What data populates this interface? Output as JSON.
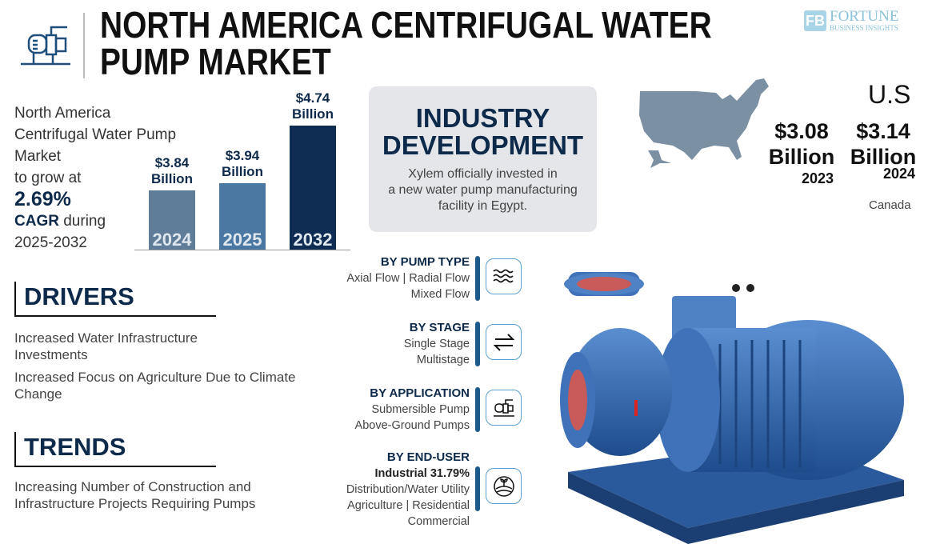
{
  "header": {
    "title_line1": "NORTH AMERICA CENTRIFUGAL WATER",
    "title_line2": "PUMP MARKET",
    "logo_text1": "FORTUNE",
    "logo_text2": "BUSINESS INSIGHTS",
    "logo_mark": "FB"
  },
  "intro": {
    "line1": "North America",
    "line2": "Centrifugal Water Pump",
    "line3": "Market",
    "line4": "to grow at",
    "cagr": "2.69%",
    "cagr_label": "CAGR",
    "during": "during",
    "period": "2025-2032"
  },
  "chart_data": {
    "type": "bar",
    "categories": [
      "2024",
      "2025",
      "2032"
    ],
    "values": [
      3.84,
      3.94,
      4.74
    ],
    "value_labels": [
      "$3.84",
      "$3.94",
      "$4.74"
    ],
    "unit": "Billion",
    "colors": [
      "#5f7d98",
      "#4a78a3",
      "#0f2d52"
    ]
  },
  "industry": {
    "title1": "INDUSTRY",
    "title2": "DEVELOPMENT",
    "text1": "Xylem officially invested in",
    "text2": "a new water pump manufacturing",
    "text3": "facility in Egypt."
  },
  "regions": {
    "us_label": "U.S",
    "v2023": "$3.08",
    "v2024": "$3.14",
    "unit": "Billion",
    "y2023": "2023",
    "y2024": "2024",
    "canada": "Canada",
    "map_color": "#7b91a3"
  },
  "drivers": {
    "title": "DRIVERS",
    "items": [
      "Increased Water Infrastructure Investments",
      "Increased Focus on Agriculture Due to Climate Change"
    ]
  },
  "trends": {
    "title": "TRENDS",
    "items": [
      "Increasing Number of Construction and Infrastructure Projects Requiring Pumps"
    ]
  },
  "segments": [
    {
      "title": "BY PUMP TYPE",
      "lines": [
        "Axial Flow  |  Radial Flow",
        "Mixed Flow"
      ],
      "icon": "waves-icon"
    },
    {
      "title": "BY STAGE",
      "lines": [
        "Single Stage",
        "Multistage"
      ],
      "icon": "exchange-arrows-icon"
    },
    {
      "title": "BY APPLICATION",
      "lines": [
        "Submersible Pump",
        "Above-Ground Pumps"
      ],
      "icon": "pump-icon"
    },
    {
      "title": "BY END-USER",
      "highlight": "Industrial 31.79%",
      "lines": [
        "Distribution/Water Utility",
        "Agriculture  |  Residential",
        "Commercial"
      ],
      "icon": "agriculture-icon"
    }
  ],
  "colors": {
    "navy": "#0e2a4a",
    "accent": "#1d5a8c",
    "pump_blue": "#2f63a8"
  }
}
